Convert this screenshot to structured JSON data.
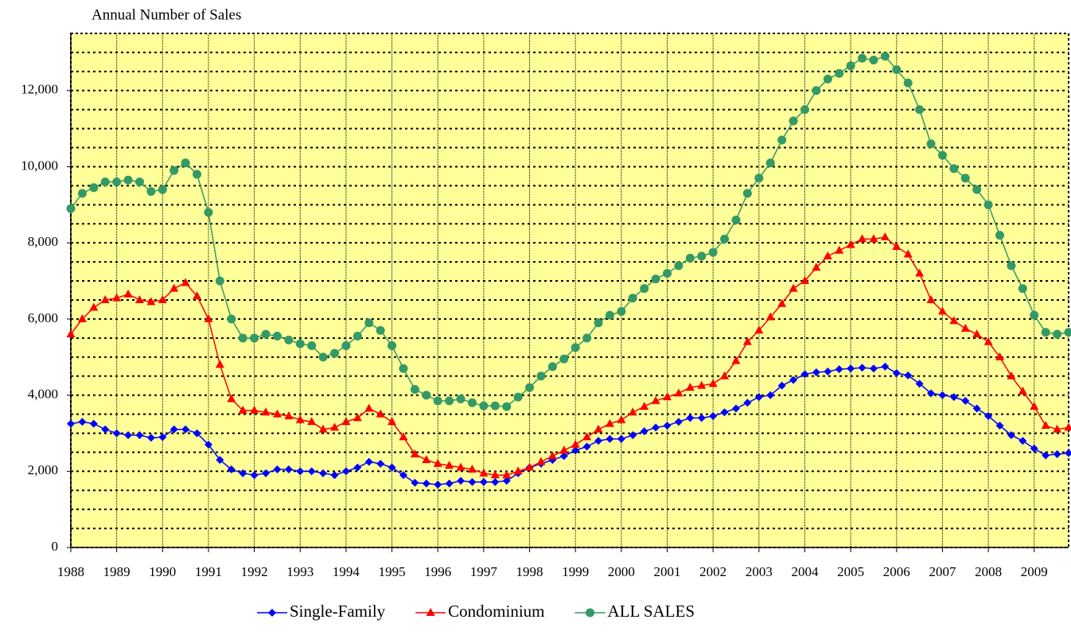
{
  "chart_data": {
    "type": "line",
    "title": "Annual Number of Sales",
    "x": [
      1988,
      1988.25,
      1988.5,
      1988.75,
      1989,
      1989.25,
      1989.5,
      1989.75,
      1990,
      1990.25,
      1990.5,
      1990.75,
      1991,
      1991.25,
      1991.5,
      1991.75,
      1992,
      1992.25,
      1992.5,
      1992.75,
      1993,
      1993.25,
      1993.5,
      1993.75,
      1994,
      1994.25,
      1994.5,
      1994.75,
      1995,
      1995.25,
      1995.5,
      1995.75,
      1996,
      1996.25,
      1996.5,
      1996.75,
      1997,
      1997.25,
      1997.5,
      1997.75,
      1998,
      1998.25,
      1998.5,
      1998.75,
      1999,
      1999.25,
      1999.5,
      1999.75,
      2000,
      2000.25,
      2000.5,
      2000.75,
      2001,
      2001.25,
      2001.5,
      2001.75,
      2002,
      2002.25,
      2002.5,
      2002.75,
      2003,
      2003.25,
      2003.5,
      2003.75,
      2004,
      2004.25,
      2004.5,
      2004.75,
      2005,
      2005.25,
      2005.5,
      2005.75,
      2006,
      2006.25,
      2006.5,
      2006.75,
      2007,
      2007.25,
      2007.5,
      2007.75,
      2008,
      2008.25,
      2008.5,
      2008.75,
      2009,
      2009.25,
      2009.5,
      2009.75
    ],
    "series": [
      {
        "name": "Single-Family",
        "color": "#0000ff",
        "marker": "diamond",
        "values": [
          3250,
          3300,
          3250,
          3100,
          3000,
          2950,
          2950,
          2880,
          2900,
          3100,
          3100,
          3000,
          2700,
          2300,
          2050,
          1950,
          1900,
          1950,
          2050,
          2050,
          2000,
          2000,
          1950,
          1900,
          2000,
          2100,
          2250,
          2200,
          2100,
          1900,
          1700,
          1680,
          1650,
          1680,
          1750,
          1720,
          1720,
          1720,
          1750,
          1950,
          2100,
          2200,
          2300,
          2400,
          2550,
          2650,
          2800,
          2850,
          2850,
          2950,
          3050,
          3150,
          3200,
          3300,
          3400,
          3400,
          3450,
          3550,
          3650,
          3800,
          3950,
          4000,
          4250,
          4400,
          4550,
          4600,
          4620,
          4680,
          4700,
          4720,
          4700,
          4750,
          4580,
          4520,
          4300,
          4050,
          4000,
          3950,
          3850,
          3650,
          3450,
          3200,
          2950,
          2800,
          2600,
          2420,
          2450,
          2480
        ]
      },
      {
        "name": "Condominium",
        "color": "#ff0000",
        "marker": "triangle",
        "values": [
          5600,
          6000,
          6300,
          6500,
          6550,
          6650,
          6500,
          6450,
          6500,
          6800,
          6950,
          6600,
          6000,
          4800,
          3900,
          3600,
          3600,
          3550,
          3500,
          3450,
          3350,
          3300,
          3100,
          3150,
          3300,
          3400,
          3650,
          3500,
          3300,
          2900,
          2450,
          2300,
          2200,
          2150,
          2100,
          2050,
          1950,
          1900,
          1900,
          2000,
          2100,
          2250,
          2400,
          2550,
          2700,
          2900,
          3100,
          3250,
          3350,
          3550,
          3700,
          3850,
          3950,
          4050,
          4200,
          4250,
          4300,
          4500,
          4900,
          5400,
          5700,
          6050,
          6400,
          6800,
          7000,
          7350,
          7650,
          7800,
          7950,
          8100,
          8100,
          8150,
          7900,
          7700,
          7200,
          6500,
          6200,
          5950,
          5750,
          5600,
          5400,
          5000,
          4500,
          4100,
          3700,
          3200,
          3100,
          3150
        ]
      },
      {
        "name": "ALL SALES",
        "color": "#339966",
        "marker": "circle",
        "values": [
          8900,
          9300,
          9450,
          9600,
          9600,
          9650,
          9600,
          9350,
          9400,
          9900,
          10100,
          9800,
          8800,
          7000,
          6000,
          5500,
          5500,
          5600,
          5550,
          5450,
          5350,
          5300,
          5000,
          5100,
          5300,
          5550,
          5900,
          5700,
          5300,
          4700,
          4150,
          4000,
          3850,
          3850,
          3900,
          3800,
          3720,
          3720,
          3700,
          3950,
          4200,
          4500,
          4750,
          4950,
          5250,
          5500,
          5900,
          6100,
          6200,
          6550,
          6800,
          7050,
          7200,
          7400,
          7600,
          7650,
          7750,
          8100,
          8600,
          9300,
          9700,
          10100,
          10700,
          11200,
          11500,
          12000,
          12300,
          12450,
          12650,
          12850,
          12800,
          12900,
          12550,
          12200,
          11500,
          10600,
          10300,
          9950,
          9700,
          9400,
          9000,
          8200,
          7400,
          6800,
          6100,
          5650,
          5600,
          5650
        ]
      }
    ],
    "xlim": [
      1988,
      2009.75
    ],
    "xticks": [
      1988,
      1989,
      1990,
      1991,
      1992,
      1993,
      1994,
      1995,
      1996,
      1997,
      1998,
      1999,
      2000,
      2001,
      2002,
      2003,
      2004,
      2005,
      2006,
      2007,
      2008,
      2009
    ],
    "ylim": [
      0,
      13500
    ],
    "yticks": [
      0,
      {
        "value": 2000,
        "label": "2,000"
      },
      {
        "value": 4000,
        "label": "4,000"
      },
      {
        "value": 6000,
        "label": "6,000"
      },
      {
        "value": 8000,
        "label": "8,000"
      },
      {
        "value": 10000,
        "label": "10,000"
      },
      {
        "value": 12000,
        "label": "12,000"
      }
    ],
    "yminorticks": [
      500,
      1000,
      1500,
      2500,
      3000,
      3500,
      4500,
      5000,
      5500,
      6500,
      7000,
      7500,
      8500,
      9000,
      9500,
      10500,
      11000,
      11500,
      12500,
      13000
    ],
    "plot_background": "#ffff99",
    "grid": true,
    "legend": "bottom"
  }
}
